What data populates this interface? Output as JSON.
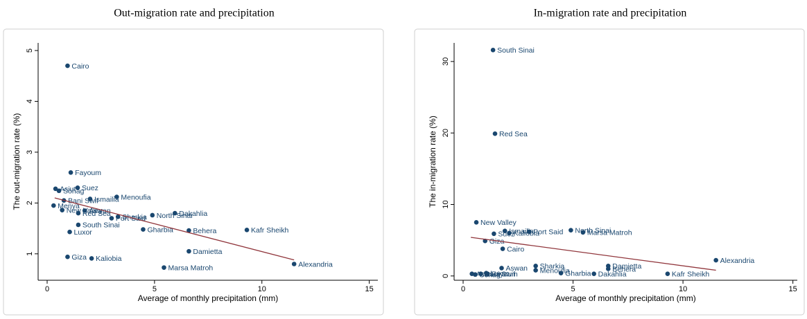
{
  "chart_data": [
    {
      "type": "scatter",
      "title": "Out-migration rate and precipitation",
      "x_label": "Average of monthly precipitation (mm)",
      "y_label": "The out-migration rate (%)",
      "labels": [
        "Cairo",
        "Fayoum",
        "Asiut",
        "Sohag",
        "Suez",
        "Ismailia",
        "Menoufia",
        "Bani Swif",
        "Menya",
        "New Valley",
        "Aswan",
        "Red Sea",
        "Sharkia",
        "Port Said",
        "North Sinai",
        "Dakahlia",
        "South Sinai",
        "Luxor",
        "Gharbia",
        "Behera",
        "Kafr Sheikh",
        "Damietta",
        "Giza",
        "Kaliobia",
        "Marsa Matroh",
        "Alexandria"
      ],
      "x": [
        0.95,
        1.1,
        0.39,
        0.55,
        1.42,
        2.0,
        3.24,
        0.78,
        0.3,
        0.7,
        1.75,
        1.45,
        3.3,
        3.0,
        4.9,
        5.95,
        1.45,
        1.05,
        4.47,
        6.6,
        9.3,
        6.6,
        0.95,
        2.07,
        5.44,
        11.5
      ],
      "values": [
        4.7,
        2.6,
        2.28,
        2.24,
        2.3,
        2.08,
        2.12,
        2.05,
        1.95,
        1.86,
        1.85,
        1.8,
        1.73,
        1.7,
        1.76,
        1.8,
        1.57,
        1.43,
        1.48,
        1.46,
        1.47,
        1.05,
        0.94,
        0.91,
        0.73,
        0.8
      ],
      "color": "#1a476f",
      "fit": {
        "x": [
          0.35,
          11.5
        ],
        "values": [
          2.1,
          0.88
        ],
        "color": "#90353b"
      },
      "xlim": [
        -0.42,
        15.4
      ],
      "ylim": [
        0.48,
        5.15
      ],
      "xticks": [
        0,
        5,
        10,
        15
      ],
      "yticks": [
        1,
        2,
        3,
        4,
        5
      ]
    },
    {
      "type": "scatter",
      "title": "In-migration rate and precipitation",
      "x_label": "Average of monthly precipitation (mm)",
      "y_label": "The in-migration rate (%)",
      "labels": [
        "South Sinai",
        "Red Sea",
        "New Valley",
        "Ismailia",
        "Kaliobia",
        "Port Said",
        "Suez",
        "North Sinai",
        "Marsa Matroh",
        "Giza",
        "Cairo",
        "Alexandria",
        "Sharkia",
        "Damietta",
        "Behera",
        "Aswan",
        "Menoufia",
        "Gharbia",
        "Dakahlia",
        "Kafr Sheikh",
        "Asiut",
        "Sohag",
        "Luxor",
        "Fayoum",
        "Bani Swif"
      ],
      "x": [
        1.36,
        1.45,
        0.6,
        1.9,
        2.1,
        3.0,
        1.4,
        4.9,
        5.45,
        1.0,
        1.8,
        11.5,
        3.3,
        6.6,
        6.6,
        1.75,
        3.3,
        4.45,
        5.95,
        9.3,
        0.4,
        0.55,
        1.05,
        1.1,
        0.8
      ],
      "values": [
        31.6,
        19.9,
        7.5,
        6.3,
        6.0,
        6.2,
        5.9,
        6.4,
        6.1,
        4.9,
        3.8,
        2.2,
        1.4,
        1.4,
        1.0,
        1.1,
        0.8,
        0.4,
        0.3,
        0.3,
        0.3,
        0.2,
        0.4,
        0.3,
        0.3
      ],
      "color": "#1a476f",
      "fit": {
        "x": [
          0.35,
          11.5
        ],
        "values": [
          5.4,
          0.8
        ],
        "color": "#90353b"
      },
      "xlim": [
        -0.41,
        15.2
      ],
      "ylim": [
        -0.6,
        32.6
      ],
      "xticks": [
        0,
        5,
        10,
        15
      ],
      "yticks": [
        0,
        10,
        20,
        30
      ]
    }
  ]
}
